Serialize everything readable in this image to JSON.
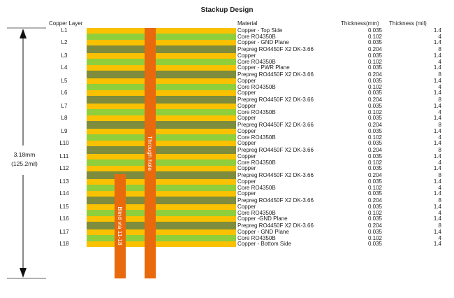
{
  "title": "Stackup Design",
  "headers": {
    "copper_layer": "Copper Layer",
    "material": "Material",
    "thickness_mm": "Thickness(mm)",
    "thickness_mil": "Thickness (mil)"
  },
  "total_thickness": {
    "mm": "3.18mm",
    "mil": "(125.2mil)"
  },
  "through_hole_label": "Through hole",
  "blind_via_label": "Blind via 11-18",
  "colors": {
    "copper": "#f9c100",
    "core": "#8fcf3c",
    "prepreg": "#7d8c3d",
    "via": "#e86a0c"
  },
  "rows": [
    {
      "layer": "L1",
      "type": "copper",
      "material": "Copper - Top Side",
      "mm": "0.035",
      "mil": "1.4"
    },
    {
      "layer": "",
      "type": "core",
      "material": "Core RO4350B",
      "mm": "0.102",
      "mil": "4"
    },
    {
      "layer": "L2",
      "type": "copper",
      "material": "Copper - GND Plane",
      "mm": "0.035",
      "mil": "1.4"
    },
    {
      "layer": "",
      "type": "prepreg",
      "material": "Prepreg RO4450F X2 DK-3.66",
      "mm": "0.204",
      "mil": "8"
    },
    {
      "layer": "L3",
      "type": "copper",
      "material": "Copper",
      "mm": "0.035",
      "mil": "1.4"
    },
    {
      "layer": "",
      "type": "core",
      "material": "Core RO4350B",
      "mm": "0.102",
      "mil": "4"
    },
    {
      "layer": "L4",
      "type": "copper",
      "material": "Copper - PWR Plane",
      "mm": "0.035",
      "mil": "1.4"
    },
    {
      "layer": "",
      "type": "prepreg",
      "material": "Prepreg RO4450F X2 DK-3.66",
      "mm": "0.204",
      "mil": "8"
    },
    {
      "layer": "L5",
      "type": "copper",
      "material": "Copper",
      "mm": "0.035",
      "mil": "1.4"
    },
    {
      "layer": "",
      "type": "core",
      "material": "Core RO4350B",
      "mm": "0.102",
      "mil": "4"
    },
    {
      "layer": "L6",
      "type": "copper",
      "material": "Copper",
      "mm": "0.035",
      "mil": "1.4"
    },
    {
      "layer": "",
      "type": "prepreg",
      "material": "Prepreg RO4450F X2 DK-3.66",
      "mm": "0.204",
      "mil": "8"
    },
    {
      "layer": "L7",
      "type": "copper",
      "material": "Copper",
      "mm": "0.035",
      "mil": "1.4"
    },
    {
      "layer": "",
      "type": "core",
      "material": "Core RO4350B",
      "mm": "0.102",
      "mil": "4"
    },
    {
      "layer": "L8",
      "type": "copper",
      "material": "Copper",
      "mm": "0.035",
      "mil": "1.4"
    },
    {
      "layer": "",
      "type": "prepreg",
      "material": "Prepreg RO4450F X2 DK-3.66",
      "mm": "0.204",
      "mil": "8"
    },
    {
      "layer": "L9",
      "type": "copper",
      "material": "Copper",
      "mm": "0.035",
      "mil": "1.4"
    },
    {
      "layer": "",
      "type": "core",
      "material": "Core RO4350B",
      "mm": "0.102",
      "mil": "4"
    },
    {
      "layer": "L10",
      "type": "copper",
      "material": "Copper",
      "mm": "0.035",
      "mil": "1.4"
    },
    {
      "layer": "",
      "type": "prepreg",
      "material": "Prepreg RO4450F X2 DK-3.66",
      "mm": "0.204",
      "mil": "8"
    },
    {
      "layer": "L11",
      "type": "copper",
      "material": "Copper",
      "mm": "0.035",
      "mil": "1.4"
    },
    {
      "layer": "",
      "type": "core",
      "material": "Core RO4350B",
      "mm": "0.102",
      "mil": "4"
    },
    {
      "layer": "L12",
      "type": "copper",
      "material": "Copper",
      "mm": "0.035",
      "mil": "1.4"
    },
    {
      "layer": "",
      "type": "prepreg",
      "material": "Prepreg RO4450F X2 DK-3.66",
      "mm": "0.204",
      "mil": "8"
    },
    {
      "layer": "L13",
      "type": "copper",
      "material": "Copper",
      "mm": "0.035",
      "mil": "1.4"
    },
    {
      "layer": "",
      "type": "core",
      "material": "Core RO4350B",
      "mm": "0.102",
      "mil": "4"
    },
    {
      "layer": "L14",
      "type": "copper",
      "material": "Copper",
      "mm": "0.035",
      "mil": "1.4"
    },
    {
      "layer": "",
      "type": "prepreg",
      "material": "Prepreg RO4450F X2 DK-3.66",
      "mm": "0.204",
      "mil": "8"
    },
    {
      "layer": "L15",
      "type": "copper",
      "material": "Copper",
      "mm": "0.035",
      "mil": "1.4"
    },
    {
      "layer": "",
      "type": "core",
      "material": "Core RO4350B",
      "mm": "0.102",
      "mil": "4"
    },
    {
      "layer": "L16",
      "type": "copper",
      "material": "Copper -GND Plane",
      "mm": "0.035",
      "mil": "1.4"
    },
    {
      "layer": "",
      "type": "prepreg",
      "material": "Prepreg RO4450F X2 DK-3.66",
      "mm": "0.204",
      "mil": "8"
    },
    {
      "layer": "L17",
      "type": "copper",
      "material": "Copper - GND Plane",
      "mm": "0.035",
      "mil": "1.4"
    },
    {
      "layer": "",
      "type": "core",
      "material": "Core RO4350B",
      "mm": "0.102",
      "mil": "4"
    },
    {
      "layer": "L18",
      "type": "copper",
      "material": "Copper - Bottom Side",
      "mm": "0.035",
      "mil": "1.4"
    }
  ]
}
